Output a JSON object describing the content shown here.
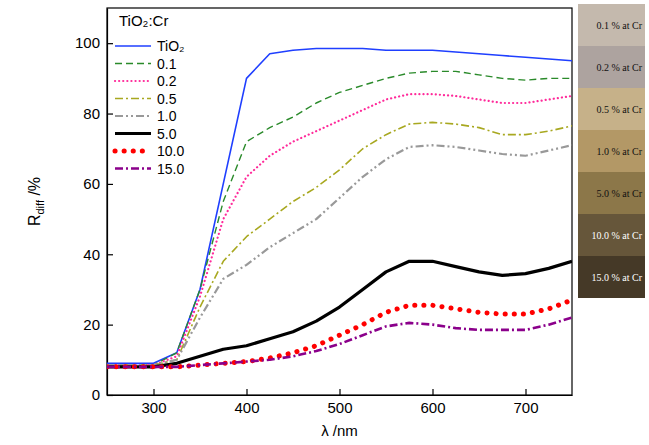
{
  "chart_data": {
    "type": "line",
    "title": "TiO₂:Cr",
    "xlabel": "λ /nm",
    "ylabel": [
      "R",
      "diff",
      " /%"
    ],
    "x": [
      250,
      275,
      300,
      325,
      350,
      375,
      400,
      425,
      450,
      475,
      500,
      525,
      550,
      575,
      600,
      625,
      650,
      675,
      700,
      725,
      750
    ],
    "series": [
      {
        "name": "TiO₂",
        "color": "#1f3fff",
        "line_style": "solid",
        "values": [
          9,
          9,
          9,
          12,
          30,
          60,
          90,
          97,
          98,
          98.5,
          98.5,
          98.5,
          98,
          98,
          98,
          97.5,
          97,
          96.5,
          96,
          95.5,
          95
        ]
      },
      {
        "name": "0.1",
        "color": "#2a8a2a",
        "line_style": "dashed",
        "values": [
          8.5,
          8.5,
          8.5,
          12,
          30,
          55,
          72,
          76,
          79,
          83,
          86,
          88,
          90,
          91.5,
          92,
          92,
          91,
          90,
          89.5,
          90,
          90
        ]
      },
      {
        "name": "0.2",
        "color": "#ff2a9a",
        "line_style": "dotted",
        "values": [
          8.5,
          8.5,
          8.5,
          11,
          28,
          50,
          62,
          68,
          72,
          75,
          78,
          81,
          84,
          85.5,
          85.5,
          85,
          84,
          83,
          83,
          84,
          85
        ]
      },
      {
        "name": "0.5",
        "color": "#a8a820",
        "line_style": "dashdot",
        "values": [
          8.5,
          8.5,
          8.5,
          10,
          25,
          38,
          45,
          50,
          55,
          59,
          64,
          70,
          74,
          77,
          77.5,
          77,
          76,
          74,
          74,
          75,
          76.5
        ]
      },
      {
        "name": "1.0",
        "color": "#999999",
        "line_style": "dashdotdot",
        "values": [
          8.5,
          8.5,
          8.5,
          10,
          22,
          33,
          37,
          42,
          46,
          50,
          56,
          62,
          67,
          70.5,
          71,
          70.5,
          69.5,
          68.5,
          68,
          69.5,
          71
        ]
      },
      {
        "name": "5.0",
        "color": "#000000",
        "line_style": "solid",
        "values": [
          8,
          8,
          8,
          9,
          11,
          13,
          14,
          16,
          18,
          21,
          25,
          30,
          35,
          38,
          38,
          36.5,
          35,
          34,
          34.5,
          36,
          38
        ]
      },
      {
        "name": "10.0",
        "color": "#ff0000",
        "line_style": "dotted",
        "values": [
          8,
          8,
          8,
          8,
          8.5,
          9,
          9.5,
          10.5,
          12,
          14,
          17,
          20,
          23.5,
          25.5,
          25.5,
          24.5,
          23.5,
          23,
          23,
          24.5,
          27
        ]
      },
      {
        "name": "15.0",
        "color": "#8b008b",
        "line_style": "dashdot",
        "values": [
          8,
          8,
          8,
          8,
          8.5,
          9,
          9.5,
          10,
          11,
          12.5,
          14.5,
          17,
          19.5,
          20.5,
          20,
          19,
          18.5,
          18.5,
          18.5,
          20,
          22
        ]
      }
    ],
    "xlim": [
      250,
      750
    ],
    "xticks": [
      300,
      400,
      500,
      600,
      700
    ],
    "ylim": [
      0,
      110
    ],
    "yticks": [
      0,
      20,
      40,
      60,
      80,
      100
    ],
    "grid": false,
    "legend": "upper left"
  },
  "sample_strip": [
    {
      "label": "0.1 % at Cr",
      "color": "#c4b9ad"
    },
    {
      "label": "0.2 % at Cr",
      "color": "#ada39f"
    },
    {
      "label": "0.5 % at Cr",
      "color": "#c6b189"
    },
    {
      "label": "1.0 % at Cr",
      "color": "#b39866"
    },
    {
      "label": "5.0 % at Cr",
      "color": "#8c7749"
    },
    {
      "label": "10.0 % at Cr",
      "color": "#66563a"
    },
    {
      "label": "15.0 % at Cr",
      "color": "#453927"
    }
  ]
}
